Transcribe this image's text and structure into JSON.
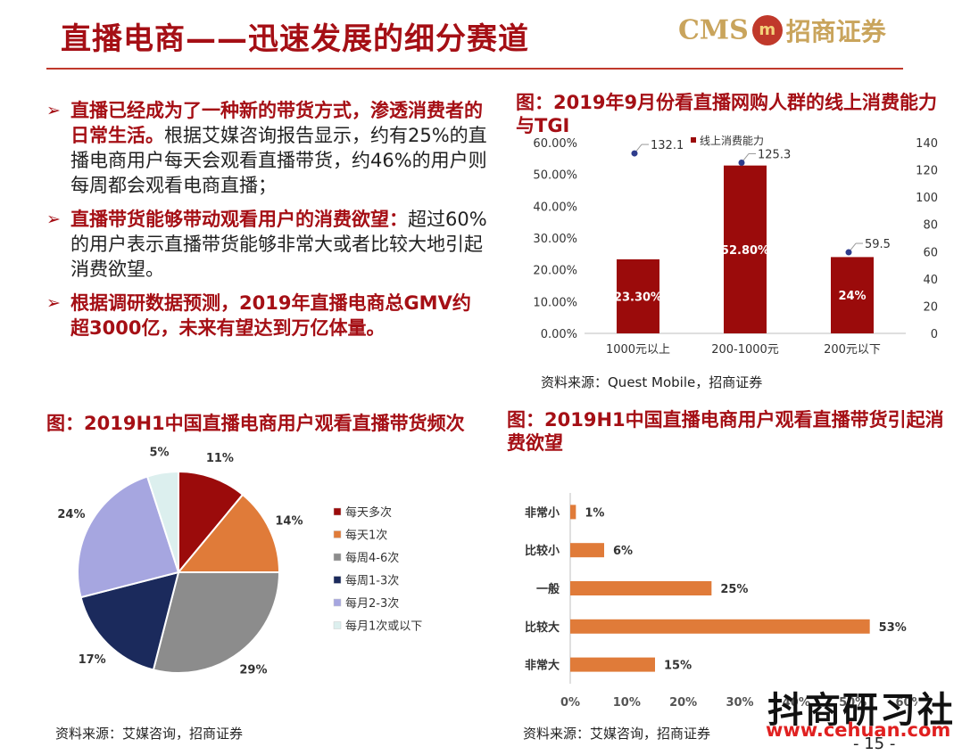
{
  "header": {
    "title": "直播电商——迅速发展的细分赛道",
    "logo_text": "CMS",
    "logo_ball": "m",
    "logo_cn": "招商证券"
  },
  "bullets": [
    {
      "bold": "直播已经成为了一种新的带货方式，渗透消费者的日常生活。",
      "text": "根据艾媒咨询报告显示，约有25%的直播电商用户每天会观看直播带货，约46%的用户则每周都会观看电商直播；"
    },
    {
      "bold": "直播带货能够带动观看用户的消费欲望：",
      "text": "超过60%的用户表示直播带货能够非常大或者比较大地引起消费欲望。"
    },
    {
      "bold": "根据调研数据预测，2019年直播电商总GMV约超3000亿，未来有望达到万亿体量。",
      "text": ""
    }
  ],
  "colors": {
    "accent": "#a50f15",
    "bar": "#9b0b0b",
    "orange": "#e07b39"
  },
  "chart_data": [
    {
      "id": "consumption",
      "type": "bar",
      "title": "图：2019年9月份看直播网购人群的线上消费能力与TGI",
      "categories": [
        "1000元以上",
        "200-1000元",
        "200元以下"
      ],
      "series": [
        {
          "name": "线上消费能力",
          "type": "bar",
          "values": [
            23.3,
            52.8,
            24
          ],
          "labels": [
            "23.30%",
            "52.80%",
            "24%"
          ]
        },
        {
          "name": "",
          "type": "scatter",
          "axis": "right",
          "values": [
            132.1,
            125.3,
            59.5
          ],
          "labels": [
            "132.1",
            "125.3",
            "59.5"
          ]
        }
      ],
      "y_left": {
        "min": 0,
        "max": 60,
        "ticks": [
          "0.00%",
          "10.00%",
          "20.00%",
          "30.00%",
          "40.00%",
          "50.00%",
          "60.00%"
        ]
      },
      "y_right": {
        "min": 0,
        "max": 140,
        "ticks": [
          "0",
          "20",
          "40",
          "60",
          "80",
          "100",
          "120",
          "140"
        ]
      },
      "legend": "top-center",
      "source": "资料来源：Quest Mobile，招商证券"
    },
    {
      "id": "frequency",
      "type": "pie",
      "title": "图：2019H1中国直播电商用户观看直播带货频次",
      "slices": [
        {
          "label": "每天多次",
          "value": 11,
          "text": "11%",
          "color": "#9b0b0b"
        },
        {
          "label": "每天1次",
          "value": 14,
          "text": "14%",
          "color": "#e07b39"
        },
        {
          "label": "每周4-6次",
          "value": 29,
          "text": "29%",
          "color": "#8c8c8c"
        },
        {
          "label": "每周1-3次",
          "value": 17,
          "text": "17%",
          "color": "#1b2a5c"
        },
        {
          "label": "每月2-3次",
          "value": 24,
          "text": "24%",
          "color": "#a6a6e0"
        },
        {
          "label": "每月1次或以下",
          "value": 5,
          "text": "5%",
          "color": "#dcefee"
        }
      ],
      "legend": "right",
      "source": "资料来源：艾媒咨询，招商证券"
    },
    {
      "id": "desire",
      "type": "bar",
      "orientation": "horizontal",
      "title": "图：2019H1中国直播电商用户观看直播带货引起消费欲望",
      "categories": [
        "非常小",
        "比较小",
        "一般",
        "比较大",
        "非常大"
      ],
      "values": [
        1,
        6,
        25,
        53,
        15
      ],
      "labels": [
        "1%",
        "6%",
        "25%",
        "53%",
        "15%"
      ],
      "x_ticks": [
        "0%",
        "10%",
        "20%",
        "30%",
        "40%",
        "50%",
        "60%"
      ],
      "xlim": [
        0,
        60
      ],
      "source": "资料来源：艾媒咨询，招商证券"
    }
  ],
  "watermark": {
    "text": "抖商研习社",
    "url": "www.cehuan.com"
  },
  "page_number": "- 15 -"
}
